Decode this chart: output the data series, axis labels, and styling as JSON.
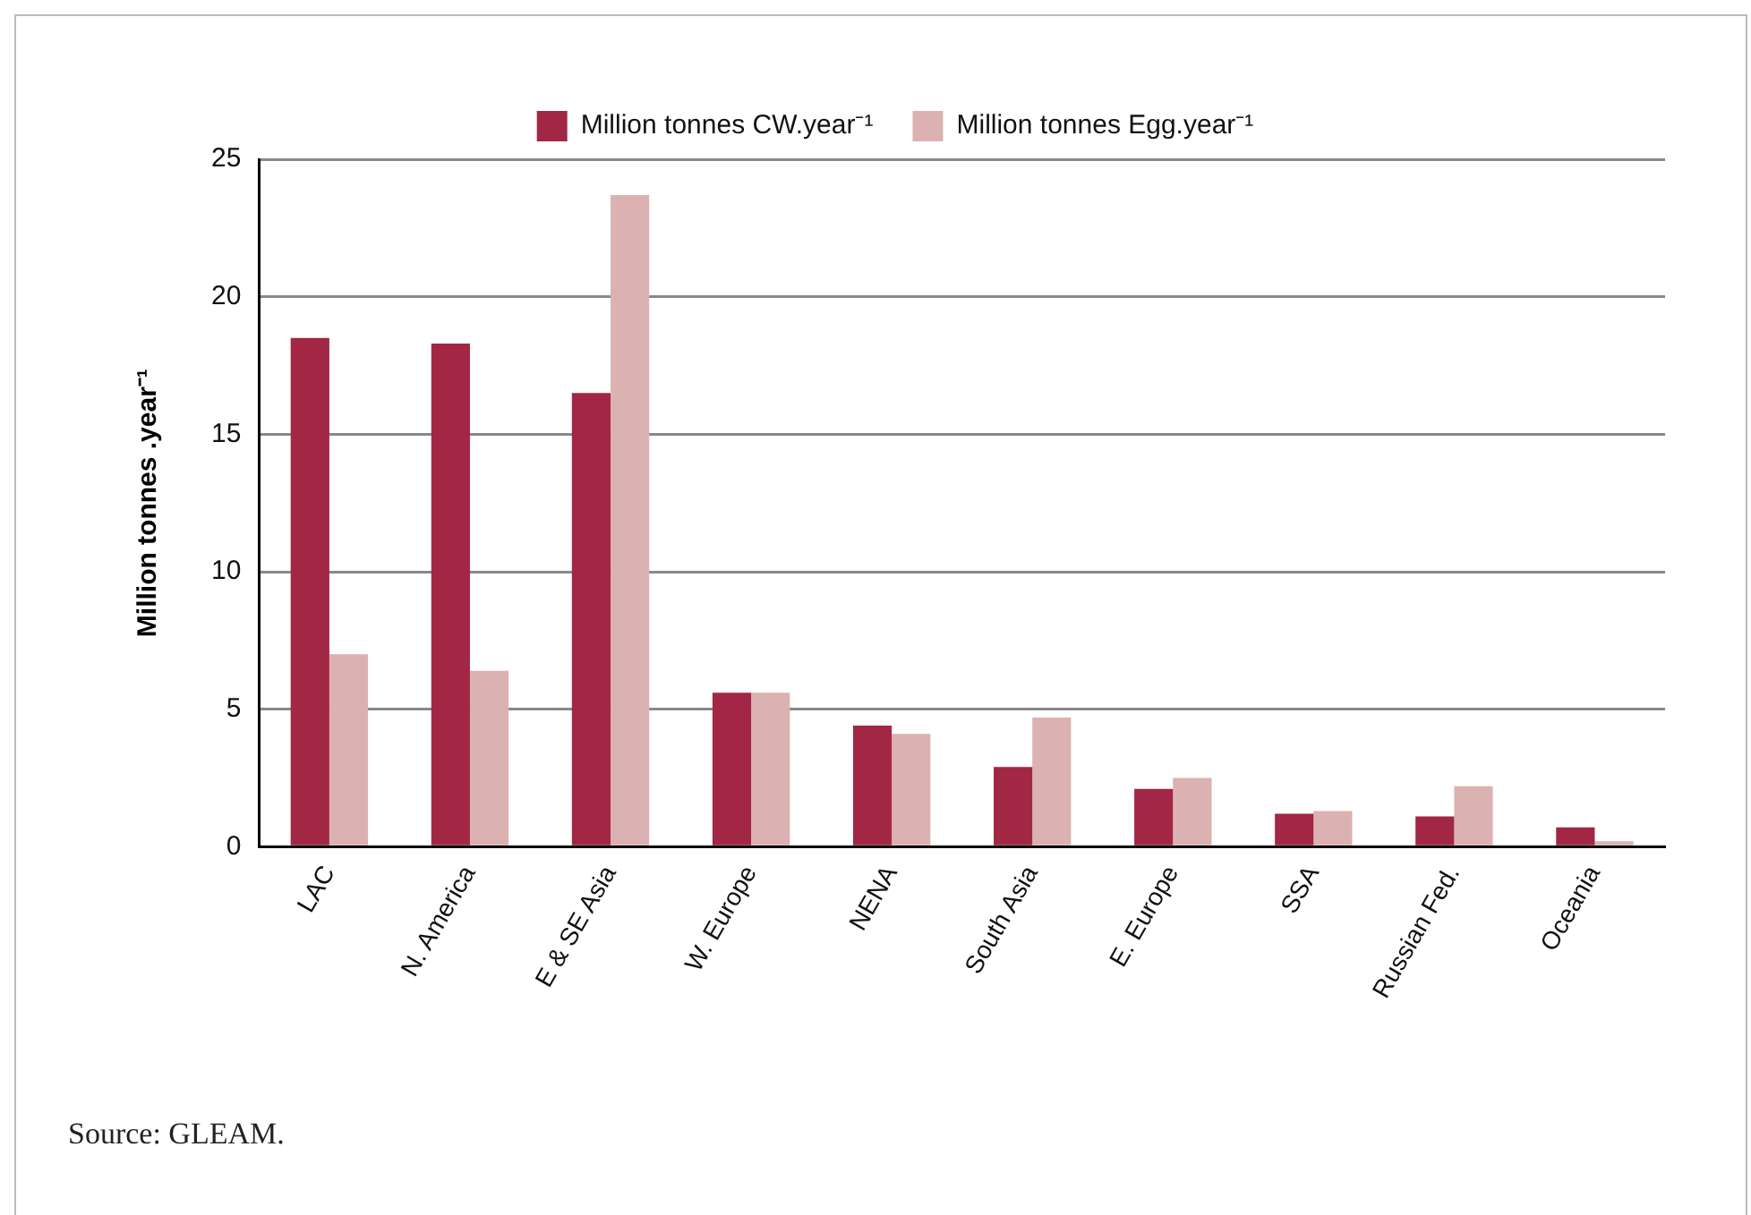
{
  "chart_data": {
    "type": "bar",
    "ylabel": "Million tonnes .year⁻¹",
    "categories": [
      "LAC",
      "N. America",
      "E & SE Asia",
      "W. Europe",
      "NENA",
      "South Asia",
      "E. Europe",
      "SSA",
      "Russian Fed.",
      "Oceania"
    ],
    "series": [
      {
        "name": "Million tonnes CW.year⁻¹",
        "color": "#a12744",
        "values": [
          18.5,
          18.3,
          16.5,
          5.6,
          4.4,
          2.9,
          2.1,
          1.2,
          1.1,
          0.7
        ]
      },
      {
        "name": "Million tonnes Egg.year⁻¹",
        "color": "#dbb2b1",
        "values": [
          7.0,
          6.4,
          23.7,
          5.6,
          4.1,
          4.7,
          2.5,
          1.3,
          2.2,
          0.2
        ]
      }
    ],
    "ylim": [
      0,
      25
    ],
    "yticks": [
      0,
      5,
      10,
      15,
      20,
      25
    ],
    "grid": "y",
    "legend": "top",
    "annotations": [
      "Source: GLEAM."
    ]
  }
}
